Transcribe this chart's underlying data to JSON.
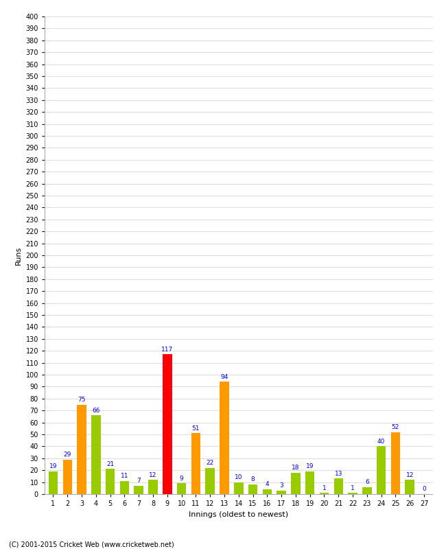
{
  "innings": [
    1,
    2,
    3,
    4,
    5,
    6,
    7,
    8,
    9,
    10,
    11,
    12,
    13,
    14,
    15,
    16,
    17,
    18,
    19,
    20,
    21,
    22,
    23,
    24,
    25,
    26,
    27
  ],
  "values": [
    19,
    29,
    75,
    66,
    21,
    11,
    7,
    12,
    117,
    9,
    51,
    22,
    94,
    10,
    8,
    4,
    3,
    18,
    19,
    1,
    13,
    1,
    6,
    40,
    52,
    12,
    0
  ],
  "bar_colors": [
    "#99cc00",
    "#ff9900",
    "#ff9900",
    "#99cc00",
    "#99cc00",
    "#99cc00",
    "#99cc00",
    "#99cc00",
    "#ff0000",
    "#99cc00",
    "#ff9900",
    "#99cc00",
    "#ff9900",
    "#99cc00",
    "#99cc00",
    "#99cc00",
    "#99cc00",
    "#99cc00",
    "#99cc00",
    "#99cc00",
    "#99cc00",
    "#99cc00",
    "#99cc00",
    "#99cc00",
    "#ff9900",
    "#99cc00",
    "#ff9900"
  ],
  "title": "",
  "xlabel": "Innings (oldest to newest)",
  "ylabel": "Runs",
  "ylim": [
    0,
    400
  ],
  "background_color": "#ffffff",
  "grid_color": "#cccccc",
  "label_color": "#0000cc",
  "copyright": "(C) 2001-2015 Cricket Web (www.cricketweb.net)"
}
